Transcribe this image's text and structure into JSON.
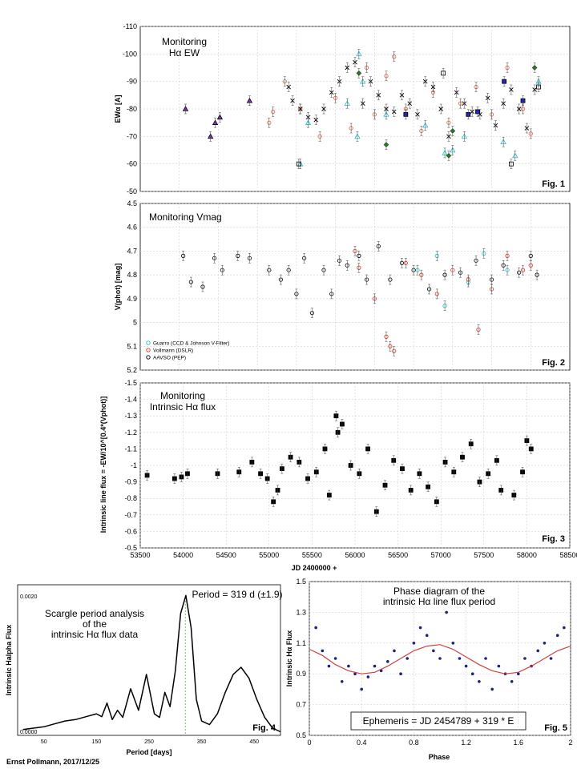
{
  "credit": "Ernst Pollmann, 2017/12/25",
  "shared_xlabel": "JD 2400000 +",
  "chart_data": [
    {
      "type": "scatter",
      "id": "fig1",
      "title": "Monitoring\nHα EW",
      "figure_label": "Fig. 1",
      "ylabel": "EWα [A]",
      "ylim": [
        -110,
        -50
      ],
      "y_reversed": true,
      "yticks": [
        -110,
        -100,
        -90,
        -80,
        -70,
        -60,
        -50
      ],
      "xlim": [
        53000,
        58500
      ],
      "grid": true,
      "series": [
        {
          "marker": "triangle",
          "color": "#9933cc",
          "x": [
            53580,
            53900,
            53960,
            54020,
            54400
          ],
          "y": [
            -80,
            -70,
            -75,
            -77,
            -83
          ]
        },
        {
          "marker": "circle-open",
          "color": "#e06040",
          "x": [
            54650,
            54700,
            54850,
            55050,
            55300,
            55500,
            55700,
            55900,
            56000,
            56150,
            56250,
            56400,
            56600,
            56750,
            56950,
            57100,
            57300,
            57500,
            57700,
            57900,
            58000
          ],
          "y": [
            -75,
            -79,
            -90,
            -80,
            -70,
            -84,
            -73,
            -95,
            -78,
            -92,
            -99,
            -80,
            -72,
            -86,
            -75,
            -82,
            -88,
            -78,
            -95,
            -80,
            -71
          ]
        },
        {
          "marker": "cross",
          "color": "#000000",
          "x": [
            54900,
            54950,
            55050,
            55150,
            55250,
            55350,
            55450,
            55550,
            55650,
            55750,
            55850,
            55950,
            56050,
            56150,
            56250,
            56350,
            56450,
            56550,
            56650,
            56750,
            56850,
            56950,
            57050,
            57150,
            57250,
            57350,
            57450,
            57550,
            57650,
            57750,
            57850,
            57950,
            58050
          ],
          "y": [
            -88,
            -83,
            -80,
            -77,
            -76,
            -80,
            -86,
            -90,
            -95,
            -97,
            -82,
            -90,
            -85,
            -80,
            -79,
            -85,
            -82,
            -78,
            -90,
            -88,
            -80,
            -70,
            -86,
            -82,
            -79,
            -78,
            -84,
            -74,
            -82,
            -87,
            -80,
            -73,
            -87
          ]
        },
        {
          "marker": "triangle-open",
          "color": "#20c0c8",
          "x": [
            55050,
            55150,
            55650,
            55780,
            55800,
            55850,
            56150,
            56650,
            56900,
            57000,
            57150,
            57650,
            57800,
            58100
          ],
          "y": [
            -60,
            -75,
            -82,
            -70,
            -100,
            -90,
            -78,
            -74,
            -64,
            -65,
            -70,
            -68,
            -63,
            -90
          ]
        },
        {
          "marker": "square-open",
          "color": "#000000",
          "x": [
            55030,
            56880,
            57750,
            58100
          ],
          "y": [
            -60,
            -93,
            -60,
            -88
          ]
        },
        {
          "marker": "square",
          "color": "#2020c0",
          "x": [
            56400,
            57200,
            57320,
            57660,
            57900
          ],
          "y": [
            -78,
            -78,
            -79,
            -90,
            -83
          ]
        },
        {
          "marker": "diamond",
          "color": "#228822",
          "x": [
            55800,
            56150,
            56950,
            57000,
            58050
          ],
          "y": [
            -93,
            -67,
            -63,
            -72,
            -95
          ]
        }
      ]
    },
    {
      "type": "scatter",
      "id": "fig2",
      "title": "Monitoring Vmag",
      "figure_label": "Fig. 2",
      "ylabel": "V(phot) [mag]",
      "ylim": [
        4.5,
        5.2
      ],
      "y_reversed": true,
      "yticks": [
        4.5,
        4.6,
        4.7,
        4.8,
        4.9,
        5.0,
        5.1,
        5.2
      ],
      "xlim": [
        53000,
        58500
      ],
      "grid": true,
      "legend_position": "bottom-left",
      "legend": [
        "Guarro (CCD & Johnson V-Filter)",
        "Vollmann (DSLR)",
        "AAVSO (PEP)"
      ],
      "series": [
        {
          "name": "Guarro (CCD & Johnson V-Filter)",
          "marker": "circle-open",
          "color": "#20c0c8",
          "x": [
            56550,
            56800,
            56900,
            57200,
            57400,
            57700
          ],
          "y": [
            4.78,
            4.72,
            4.93,
            4.83,
            4.71,
            4.78
          ]
        },
        {
          "name": "Vollmann (DSLR)",
          "marker": "circle-open",
          "color": "#e03020",
          "x": [
            55750,
            55800,
            56000,
            56150,
            56200,
            56250,
            56400,
            56600,
            56800,
            57000,
            57200,
            57330,
            57500,
            57700,
            57900,
            58000
          ],
          "y": [
            4.7,
            4.77,
            4.9,
            5.06,
            5.1,
            5.12,
            4.75,
            4.8,
            4.88,
            4.78,
            4.82,
            5.03,
            4.86,
            4.72,
            4.78,
            4.76
          ]
        },
        {
          "name": "AAVSO (PEP)",
          "marker": "circle-open",
          "color": "#000000",
          "x": [
            53550,
            53650,
            53800,
            53950,
            54050,
            54250,
            54400,
            54650,
            54800,
            54900,
            55000,
            55100,
            55200,
            55350,
            55450,
            55550,
            55650,
            55800,
            55900,
            56050,
            56200,
            56350,
            56500,
            56700,
            56900,
            57100,
            57300,
            57500,
            57650,
            57850,
            58000,
            58080
          ],
          "y": [
            4.72,
            4.83,
            4.85,
            4.73,
            4.78,
            4.72,
            4.73,
            4.78,
            4.82,
            4.78,
            4.88,
            4.73,
            4.96,
            4.78,
            4.88,
            4.74,
            4.76,
            4.72,
            4.82,
            4.68,
            4.82,
            4.75,
            4.78,
            4.86,
            4.8,
            4.79,
            4.74,
            4.82,
            4.76,
            4.79,
            4.72,
            4.8
          ]
        }
      ]
    },
    {
      "type": "scatter",
      "id": "fig3",
      "title": "Monitoring\nIntrinsic Hα flux",
      "figure_label": "Fig. 3",
      "ylabel": "Intrinsic line flux = -EW/10^[0.4*(Vphot)]",
      "xlabel": "JD 2400000 +",
      "ylim": [
        -1.5,
        -0.5
      ],
      "y_reversed": true,
      "yticks": [
        -1.5,
        -1.4,
        -1.3,
        -1.2,
        -1.1,
        -1.0,
        -0.9,
        -0.8,
        -0.7,
        -0.6,
        -0.5
      ],
      "xlim": [
        53500,
        58500
      ],
      "xticks": [
        53500,
        54000,
        54500,
        55000,
        55500,
        56000,
        56500,
        57000,
        57500,
        58000,
        58500
      ],
      "grid": true,
      "series": [
        {
          "marker": "square",
          "color": "#000000",
          "x": [
            53580,
            53900,
            53980,
            54050,
            54400,
            54650,
            54800,
            54900,
            54980,
            55050,
            55100,
            55150,
            55250,
            55350,
            55450,
            55550,
            55650,
            55700,
            55780,
            55800,
            55850,
            55950,
            56050,
            56150,
            56250,
            56350,
            56450,
            56550,
            56650,
            56750,
            56850,
            56950,
            57050,
            57150,
            57250,
            57350,
            57450,
            57550,
            57650,
            57700,
            57850,
            57950,
            58000,
            58050
          ],
          "y": [
            -0.94,
            -0.92,
            -0.93,
            -0.95,
            -0.95,
            -0.96,
            -1.02,
            -0.95,
            -0.92,
            -0.78,
            -0.85,
            -0.98,
            -1.05,
            -1.02,
            -0.92,
            -0.96,
            -1.1,
            -0.82,
            -1.3,
            -1.2,
            -1.25,
            -1.0,
            -0.95,
            -1.1,
            -0.72,
            -0.88,
            -1.03,
            -0.98,
            -0.85,
            -0.95,
            -0.87,
            -0.78,
            -1.02,
            -0.96,
            -1.05,
            -1.13,
            -0.9,
            -0.95,
            -1.03,
            -0.85,
            -0.82,
            -0.96,
            -1.15,
            -1.1
          ]
        }
      ]
    },
    {
      "type": "line",
      "id": "fig4",
      "title": "Scargle period analysis\nof the\nintrinsic Hα flux data",
      "annotation": "Period = 319 d (±1.9)",
      "marker_x": 319,
      "figure_label": "Fig. 4",
      "ylabel": "Intrinsic Halpha Flux",
      "xlabel": "Period [days]",
      "xlim": [
        0,
        500
      ],
      "xticks": [
        50,
        150,
        250,
        350,
        450
      ],
      "ylim": [
        0,
        0.0021
      ],
      "ytick_labels": [
        "0.0000",
        "0.0020"
      ],
      "yticks": [
        0,
        0.002
      ],
      "x": [
        10,
        30,
        50,
        70,
        90,
        110,
        130,
        150,
        160,
        170,
        180,
        190,
        200,
        215,
        230,
        245,
        260,
        270,
        280,
        290,
        300,
        310,
        320,
        330,
        340,
        350,
        365,
        380,
        395,
        410,
        425,
        440,
        455,
        470,
        485,
        500
      ],
      "y": [
        8e-05,
        0.0001,
        0.00012,
        0.00016,
        0.0002,
        0.00022,
        0.00026,
        0.0003,
        0.00026,
        0.00045,
        0.00022,
        0.00035,
        0.00025,
        0.00065,
        0.00035,
        0.00085,
        0.0003,
        0.00025,
        0.0006,
        0.0004,
        0.0009,
        0.0017,
        0.00195,
        0.0015,
        0.0005,
        0.0002,
        0.00015,
        0.0003,
        0.0006,
        0.00085,
        0.00095,
        0.0008,
        0.0005,
        0.00025,
        0.0001,
        5e-05
      ]
    },
    {
      "type": "scatter",
      "id": "fig5",
      "title": "Phase diagram of the\nintrinsic Hα line flux period",
      "figure_label": "Fig. 5",
      "ephemeris": "Ephemeris = JD 2454789 + 319 * E",
      "ylabel": "Intrinsic Hα Flux",
      "xlabel": "Phase",
      "xlim": [
        0,
        2
      ],
      "xticks": [
        0,
        0.4,
        0.8,
        1.2,
        1.6,
        2
      ],
      "xtick_labels": [
        "0",
        "0.4",
        "0.8",
        "1.2",
        "1.6",
        "2"
      ],
      "ylim": [
        0.5,
        1.5
      ],
      "yticks": [
        0.5,
        0.7,
        0.9,
        1.1,
        1.3,
        1.5
      ],
      "ytick_labels": [
        "0.5",
        "0.7",
        "0.9",
        "1.1",
        "1.3",
        "1.5"
      ],
      "grid": true,
      "series": [
        {
          "marker": "dot",
          "color": "#1a237e",
          "x": [
            0.05,
            0.1,
            0.15,
            0.2,
            0.25,
            0.3,
            0.35,
            0.4,
            0.45,
            0.5,
            0.55,
            0.6,
            0.65,
            0.7,
            0.75,
            0.8,
            0.85,
            0.9,
            0.95,
            1.0,
            1.05,
            1.1,
            1.15,
            1.2,
            1.25,
            1.3,
            1.35,
            1.4,
            1.45,
            1.5,
            1.55,
            1.6,
            1.65,
            1.7,
            1.75,
            1.8,
            1.85,
            1.9,
            1.95
          ],
          "y": [
            1.2,
            1.05,
            0.95,
            1.0,
            0.85,
            0.95,
            0.9,
            0.8,
            0.88,
            0.95,
            0.92,
            0.98,
            1.05,
            0.9,
            1.0,
            1.1,
            1.2,
            1.15,
            1.05,
            1.0,
            1.3,
            1.1,
            1.0,
            0.95,
            0.9,
            0.85,
            1.0,
            0.8,
            0.95,
            0.9,
            0.85,
            0.9,
            1.0,
            0.95,
            1.05,
            1.1,
            1.0,
            1.15,
            1.2
          ]
        },
        {
          "marker": "curve",
          "color": "#d04040",
          "x": [
            0,
            0.1,
            0.2,
            0.3,
            0.4,
            0.5,
            0.6,
            0.7,
            0.8,
            0.9,
            1.0,
            1.1,
            1.2,
            1.3,
            1.4,
            1.5,
            1.6,
            1.7,
            1.8,
            1.9,
            2.0
          ],
          "y": [
            1.06,
            1.02,
            0.96,
            0.92,
            0.9,
            0.91,
            0.95,
            1.0,
            1.05,
            1.08,
            1.09,
            1.06,
            1.01,
            0.96,
            0.92,
            0.9,
            0.91,
            0.95,
            1.0,
            1.05,
            1.08
          ]
        }
      ]
    }
  ]
}
